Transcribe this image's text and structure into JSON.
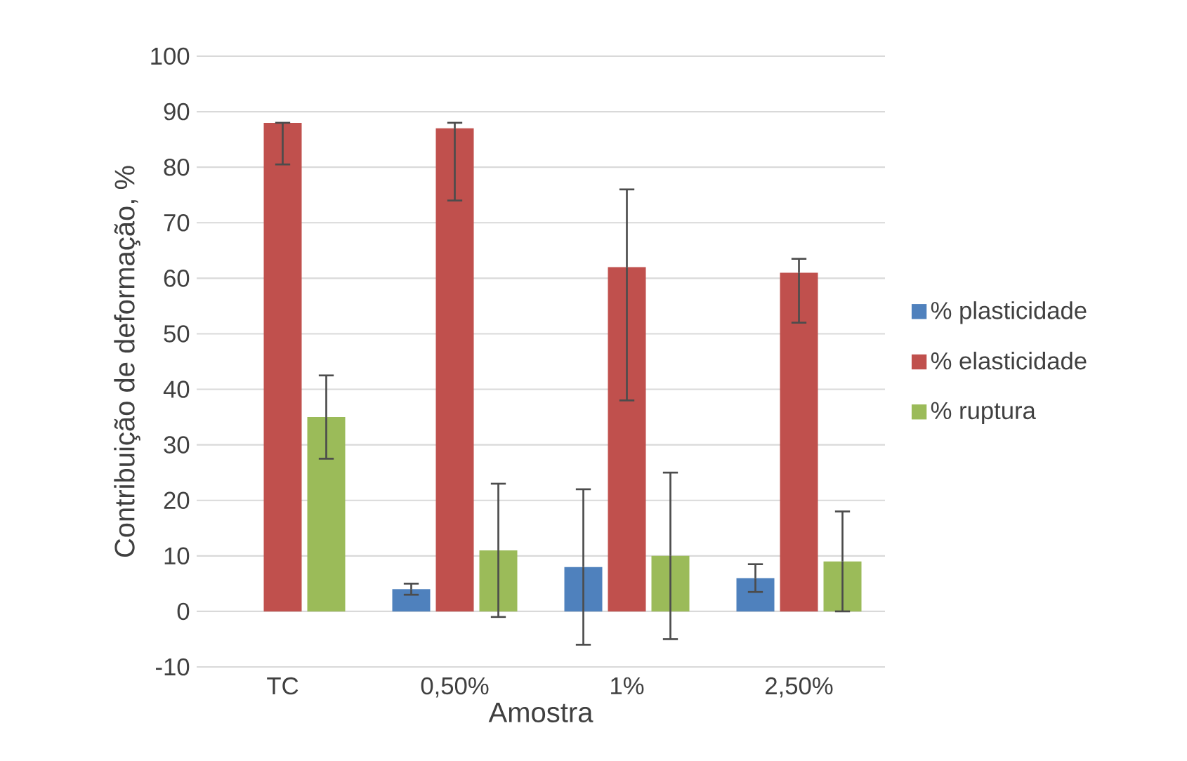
{
  "chart_data": {
    "type": "bar",
    "xlabel": "Amostra",
    "ylabel": "Contribuição de deformação, %",
    "categories": [
      "TC",
      "0,50%",
      "1%",
      "2,50%"
    ],
    "series": [
      {
        "name": "% plasticidade",
        "color": "#4f81bd",
        "values": [
          0,
          4,
          8,
          6
        ],
        "errors": [
          null,
          [
            3,
            5
          ],
          [
            -6,
            22
          ],
          [
            3.5,
            8.5
          ]
        ]
      },
      {
        "name": "% elasticidade",
        "color": "#c0504d",
        "values": [
          88,
          87,
          62,
          61
        ],
        "errors": [
          [
            80.5,
            88
          ],
          [
            74,
            88
          ],
          [
            38,
            76
          ],
          [
            52,
            63.5
          ]
        ]
      },
      {
        "name": "% ruptura",
        "color": "#9bbb59",
        "values": [
          35,
          11,
          10,
          9
        ],
        "errors": [
          [
            27.5,
            42.5
          ],
          [
            -1,
            23
          ],
          [
            -5,
            25
          ],
          [
            0,
            18
          ]
        ]
      }
    ],
    "ylim": [
      -10,
      100
    ],
    "yticks": [
      -10,
      0,
      10,
      20,
      30,
      40,
      50,
      60,
      70,
      80,
      90,
      100
    ],
    "grid": "y",
    "legend": "right"
  }
}
